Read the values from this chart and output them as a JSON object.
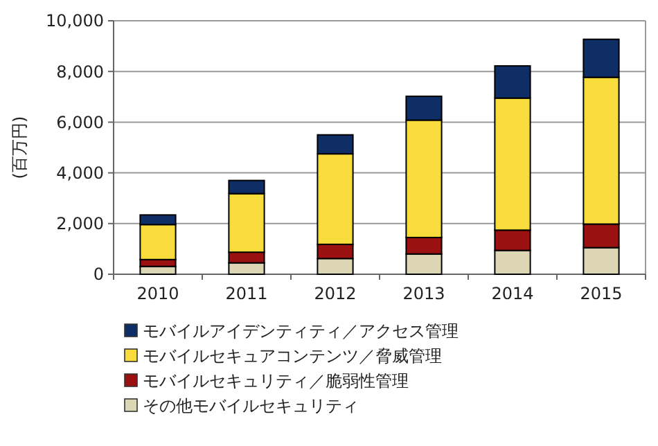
{
  "chart_data": {
    "type": "bar",
    "stacked": true,
    "ylabel": "(百万円)",
    "categories": [
      "2010",
      "2011",
      "2012",
      "2013",
      "2014",
      "2015"
    ],
    "series": [
      {
        "name": "その他モバイルセキュリティ",
        "color": "#ddd6b4",
        "values": [
          310,
          450,
          620,
          800,
          940,
          1050
        ]
      },
      {
        "name": "モバイルセキュリティ／脆弱性管理",
        "color": "#9b1010",
        "values": [
          270,
          420,
          560,
          650,
          800,
          930
        ]
      },
      {
        "name": "モバイルセキュアコンテンツ／脅威管理",
        "color": "#f7dc3c",
        "values": [
          1380,
          2310,
          3570,
          4630,
          5210,
          5790
        ]
      },
      {
        "name": "モバイルアイデンティティ／アクセス管理",
        "color": "#0f2e66",
        "values": [
          380,
          520,
          750,
          940,
          1270,
          1500
        ]
      }
    ],
    "ylim": [
      0,
      10000
    ],
    "yticks": [
      {
        "value": 0,
        "label": "0"
      },
      {
        "value": 2000,
        "label": "2,000"
      },
      {
        "value": 4000,
        "label": "4,000"
      },
      {
        "value": 6000,
        "label": "6,000"
      },
      {
        "value": 8000,
        "label": "8,000"
      },
      {
        "value": 10000,
        "label": "10,000"
      }
    ],
    "grid": "y",
    "legend": "bottom"
  }
}
